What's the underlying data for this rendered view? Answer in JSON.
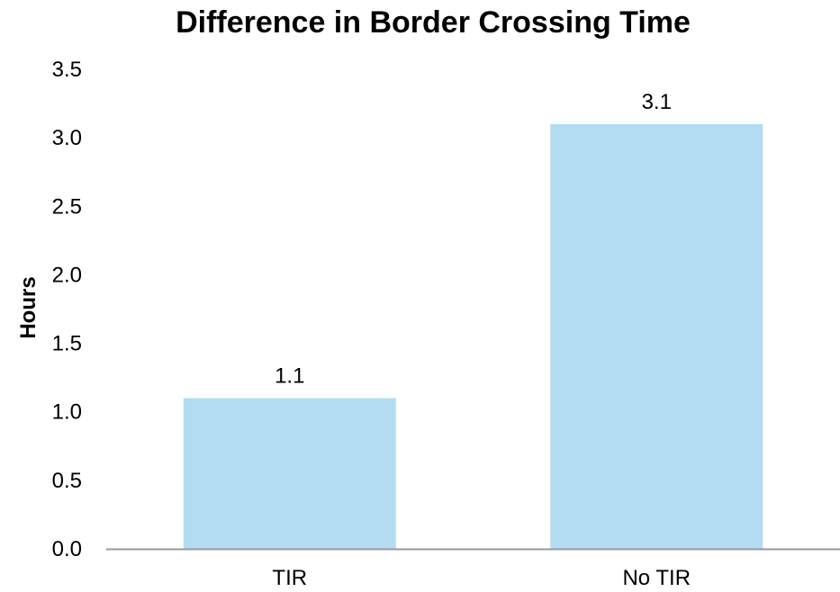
{
  "chart_data": {
    "type": "bar",
    "title": "Difference in Border Crossing Time",
    "xlabel": "",
    "ylabel": "Hours",
    "categories": [
      "TIR",
      "No TIR"
    ],
    "values": [
      1.1,
      3.1
    ],
    "data_labels": [
      "1.1",
      "3.1"
    ],
    "ylim": [
      0,
      3.5
    ],
    "yticks": [
      0,
      0.5,
      1.0,
      1.5,
      2.0,
      2.5,
      3.0,
      3.5
    ],
    "ytick_labels": [
      "0.0",
      "0.5",
      "1.0",
      "1.5",
      "2.0",
      "2.5",
      "3.0",
      "3.5"
    ],
    "grid": false,
    "legend": "none",
    "colors": {
      "bar": "#b3dcf2",
      "axis": "#999999"
    }
  }
}
